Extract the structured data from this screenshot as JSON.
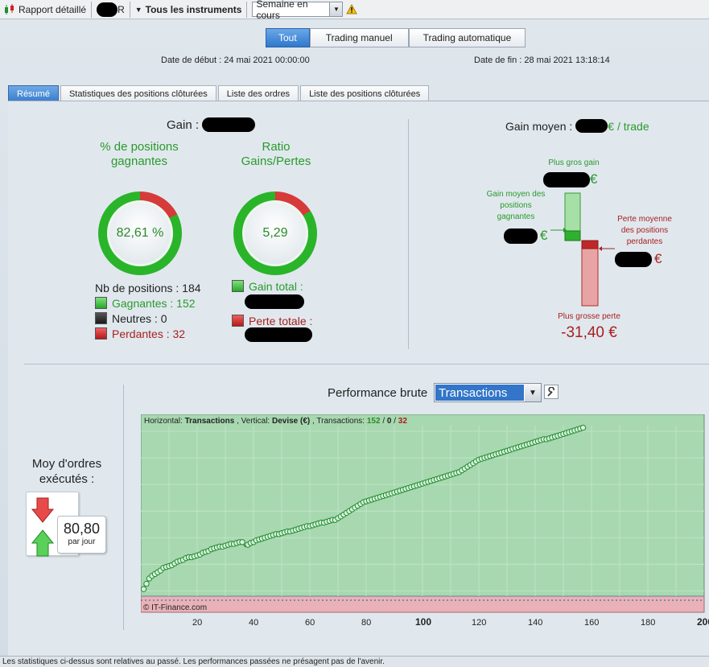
{
  "toolbar": {
    "report_label": "Rapport détaillé",
    "account_suffix": "R",
    "instruments_label": "Tous les instruments",
    "period_value": "Semaine en cours",
    "warning_icon": "warning-icon"
  },
  "header": {
    "tabs": [
      "Tout",
      "Trading manuel",
      "Trading automatique"
    ],
    "active_tab": "Tout",
    "start_date": "Date de début :  24 mai 2021 00:00:00",
    "end_date": "Date de fin :  28 mai 2021 13:18:14"
  },
  "subtabs": [
    "Résumé",
    "Statistiques des positions clôturées",
    "Liste des ordres",
    "Liste des positions clôturées"
  ],
  "active_subtab": "Résumé",
  "summary": {
    "gain_label": "Gain :",
    "win_pct_title": "% de positions gagnantes",
    "win_pct_value": "82,61 %",
    "win_pct": 0.8261,
    "ratio_title": "Ratio Gains/Pertes",
    "ratio_value": "5,29",
    "ratio_fill": 0.841,
    "positions_label": "Nb de positions : 184",
    "winners": "Gagnantes : 152",
    "neutral": "Neutres : 0",
    "losers": "Perdantes : 32",
    "gain_total_label": "Gain total :",
    "loss_total_label": "Perte totale :"
  },
  "avg_gain": {
    "title_prefix": "Gain moyen :",
    "title_suffix": "€ / trade",
    "biggest_gain_label": "Plus gros gain",
    "euro": "€",
    "avg_winner_label": "Gain moyen des positions gagnantes",
    "avg_loser_label": "Perte moyenne des positions perdantes",
    "biggest_loss_label": "Plus grosse perte",
    "biggest_loss_value": "-31,40 €"
  },
  "orders": {
    "label": "Moy d'ordres exécutés :",
    "value": "80,80",
    "unit": "par jour"
  },
  "performance": {
    "label": "Performance brute",
    "selected": "Transactions",
    "legend_h": "Horizontal:",
    "legend_h_val": "Transactions",
    "legend_v": ", Vertical:",
    "legend_v_val": "Devise (€)",
    "legend_t": ", Transactions:",
    "legend_win": "152",
    "legend_sep": " / ",
    "legend_neutral": "0",
    "legend_loss": "32",
    "copyright": "© IT-Finance.com"
  },
  "colors": {
    "win": "#2a9a2a",
    "loss": "#a82020",
    "accent": "#3275c9"
  },
  "chart_data": {
    "type": "line",
    "x_label": "",
    "y_label": "",
    "xlim": [
      0,
      200
    ],
    "x_ticks": [
      20,
      40,
      60,
      80,
      100,
      120,
      140,
      160,
      180,
      200
    ],
    "x_ticks_bold": [
      100,
      200
    ],
    "series": [
      {
        "values": [
          2,
          8,
          14,
          17,
          19,
          21,
          23,
          26,
          27,
          28,
          29,
          31,
          33,
          34,
          35,
          37,
          38,
          38,
          39,
          40,
          41,
          43,
          44,
          45,
          47,
          48,
          49,
          50,
          50,
          51,
          52,
          53,
          53,
          54,
          55,
          55,
          50,
          52,
          54,
          55,
          57,
          58,
          59,
          60,
          61,
          62,
          63,
          64,
          64,
          65,
          66,
          67,
          67,
          68,
          69,
          70,
          71,
          72,
          73,
          73,
          74,
          75,
          76,
          77,
          77,
          78,
          79,
          80,
          80,
          82,
          84,
          86,
          88,
          90,
          92,
          94,
          96,
          98,
          100,
          101,
          102,
          103,
          104,
          105,
          106,
          107,
          108,
          109,
          110,
          111,
          112,
          113,
          114,
          115,
          116,
          117,
          118,
          119,
          120,
          121,
          122,
          123,
          124,
          125,
          126,
          127,
          128,
          129,
          130,
          131,
          132,
          133,
          134,
          136,
          138,
          140,
          142,
          144,
          146,
          148,
          149,
          150,
          151,
          152,
          153,
          154,
          155,
          156,
          157,
          158,
          159,
          160,
          161,
          162,
          163,
          164,
          165,
          166,
          167,
          168,
          169,
          170,
          171,
          171,
          172,
          173,
          174,
          175,
          176,
          177,
          178,
          179,
          180,
          181,
          182,
          183,
          184
        ]
      }
    ]
  }
}
